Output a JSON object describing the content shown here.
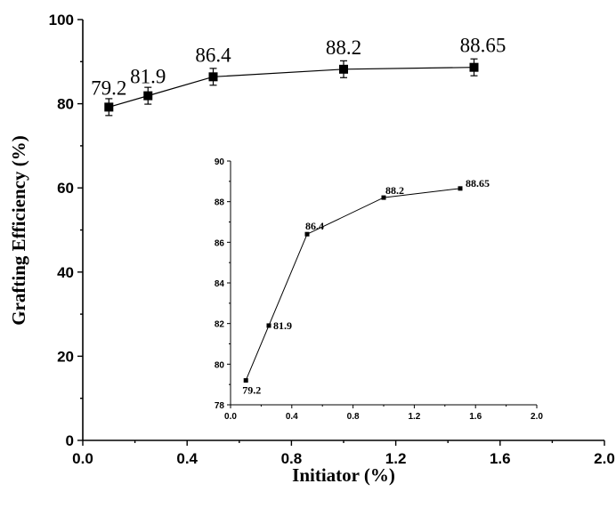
{
  "chart_data": [
    {
      "type": "line",
      "xlabel": "Initiator (%)",
      "ylabel": "Grafting Efficiency (%)",
      "xlim": [
        0.0,
        2.0
      ],
      "ylim": [
        0,
        100
      ],
      "xticks": [
        "0.0",
        "0.4",
        "0.8",
        "1.2",
        "1.6",
        "2.0"
      ],
      "yticks": [
        "0",
        "20",
        "40",
        "60",
        "80",
        "100"
      ],
      "marker": "square",
      "error_bars": true,
      "x": [
        0.1,
        0.25,
        0.5,
        1.0,
        1.5
      ],
      "y": [
        79.2,
        81.9,
        86.4,
        88.2,
        88.65
      ],
      "error": [
        2,
        2,
        2,
        2,
        2
      ],
      "data_labels": [
        "79.2",
        "81.9",
        "86.4",
        "88.2",
        "88.65"
      ]
    },
    {
      "type": "line",
      "inset": true,
      "xlim": [
        0.0,
        2.0
      ],
      "ylim": [
        78,
        90
      ],
      "xticks": [
        "0.0",
        "0.4",
        "0.8",
        "1.2",
        "1.6",
        "2.0"
      ],
      "yticks": [
        "78",
        "80",
        "82",
        "84",
        "86",
        "88",
        "90"
      ],
      "marker": "square",
      "x": [
        0.1,
        0.25,
        0.5,
        1.0,
        1.5
      ],
      "y": [
        79.2,
        81.9,
        86.4,
        88.2,
        88.65
      ],
      "data_labels": [
        "79.2",
        "81.9",
        "86.4",
        "88.2",
        "88.65"
      ]
    }
  ]
}
